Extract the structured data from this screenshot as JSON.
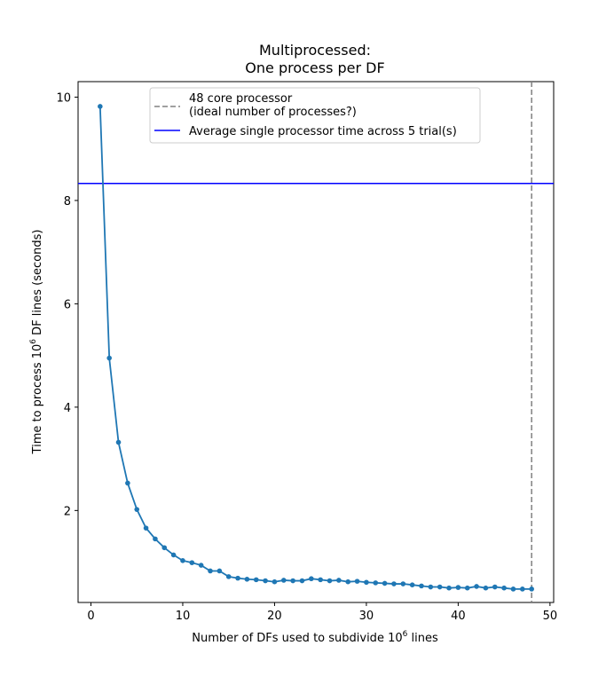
{
  "chart_data": {
    "type": "line",
    "title_line1": "Multiprocessed:",
    "title_line2": "One process per DF",
    "xlabel_prefix": "Number of DFs used to subdivide 10",
    "xlabel_sup": "6",
    "xlabel_suffix": " lines",
    "ylabel_prefix": "Time to process 10",
    "ylabel_sup": "6",
    "ylabel_suffix": " DF lines (seconds)",
    "xlim": [
      -1.4,
      50.4
    ],
    "ylim": [
      0.22,
      10.3
    ],
    "xticks": [
      0,
      10,
      20,
      30,
      40,
      50
    ],
    "yticks": [
      2,
      4,
      6,
      8,
      10
    ],
    "grid": false,
    "legend_placement": "upper center",
    "series": {
      "color": "#1f77b4",
      "x": [
        1,
        2,
        3,
        4,
        5,
        6,
        7,
        8,
        9,
        10,
        11,
        12,
        13,
        14,
        15,
        16,
        17,
        18,
        19,
        20,
        21,
        22,
        23,
        24,
        25,
        26,
        27,
        28,
        29,
        30,
        31,
        32,
        33,
        34,
        35,
        36,
        37,
        38,
        39,
        40,
        41,
        42,
        43,
        44,
        45,
        46,
        47,
        48
      ],
      "values": [
        9.82,
        4.95,
        3.32,
        2.53,
        2.02,
        1.66,
        1.45,
        1.28,
        1.14,
        1.03,
        0.99,
        0.94,
        0.83,
        0.83,
        0.72,
        0.69,
        0.67,
        0.66,
        0.64,
        0.62,
        0.65,
        0.64,
        0.64,
        0.68,
        0.66,
        0.64,
        0.65,
        0.62,
        0.63,
        0.61,
        0.6,
        0.59,
        0.58,
        0.58,
        0.56,
        0.54,
        0.52,
        0.52,
        0.5,
        0.51,
        0.5,
        0.53,
        0.5,
        0.52,
        0.5,
        0.48,
        0.48,
        0.48
      ]
    },
    "hline": {
      "y": 8.33,
      "color": "#0000ff",
      "label": "Average single processor time across 5 trial(s)"
    },
    "vline": {
      "x": 48,
      "color": "#808080",
      "label_line1": "48 core processor",
      "label_line2": "(ideal number of processes?)"
    }
  }
}
